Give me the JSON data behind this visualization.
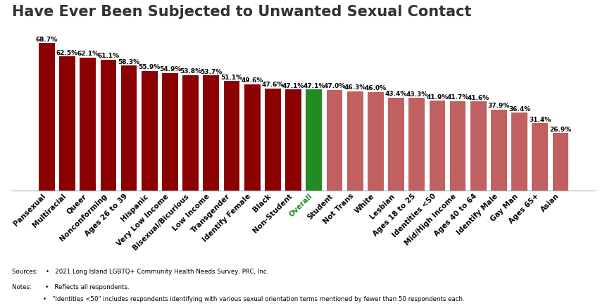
{
  "title": "Have Ever Been Subjected to Unwanted Sexual Contact",
  "categories": [
    "Pansexual",
    "Multiracial",
    "Queer",
    "Nonconforming",
    "Ages 26 to 39",
    "Hispanic",
    "Very Low Income",
    "Bisexual/Bicurious",
    "Low Income",
    "Transgender",
    "Identify Female",
    "Black",
    "Non-Student",
    "Overall",
    "Student",
    "Not Trans",
    "White",
    "Lesbian",
    "Ages 18 to 25",
    "Identities <50",
    "Mid/High Income",
    "Ages 40 to 64",
    "Identify Male",
    "Gay Man",
    "Ages 65+",
    "Asian"
  ],
  "values": [
    68.7,
    62.5,
    62.1,
    61.1,
    58.3,
    55.9,
    54.9,
    53.8,
    53.7,
    51.1,
    49.6,
    47.6,
    47.1,
    47.1,
    47.0,
    46.3,
    46.0,
    43.4,
    43.3,
    41.9,
    41.7,
    41.6,
    37.9,
    36.4,
    31.4,
    26.9
  ],
  "bar_colors": [
    "#8B0000",
    "#8B0000",
    "#8B0000",
    "#8B0000",
    "#8B0000",
    "#8B0000",
    "#8B0000",
    "#8B0000",
    "#8B0000",
    "#8B0000",
    "#8B0000",
    "#8B0000",
    "#8B0000",
    "#228B22",
    "#C06060",
    "#C06060",
    "#C06060",
    "#C06060",
    "#C06060",
    "#C06060",
    "#C06060",
    "#C06060",
    "#C06060",
    "#C06060",
    "#C06060",
    "#C06060"
  ],
  "background_color": "#FFFFFF",
  "title_fontsize": 15,
  "label_fontsize": 6.5,
  "tick_fontsize": 7.5,
  "overall_label_color": "#228B22",
  "source_line": "Sources:    •   2021 Long Island LGBTQ+ Community Health Needs Survey, PRC, Inc.",
  "notes_line1": "Notes:       •   Reflects all respondents.",
  "notes_line2": "                •   \"Identities <50\" includes respondents identifying with various sexual orientation terms mentioned by fewer than 50 respondents each."
}
